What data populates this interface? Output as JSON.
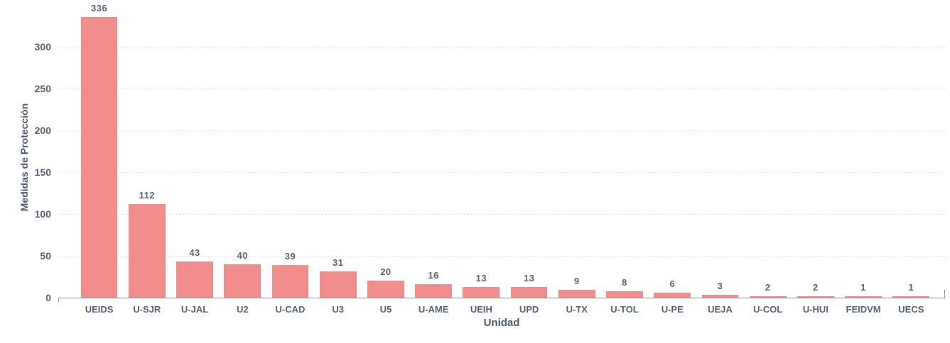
{
  "chart_data": {
    "type": "bar",
    "title": "",
    "xlabel": "Unidad",
    "ylabel": "Medidas de Protección",
    "categories": [
      "UEIDS",
      "U-SJR",
      "U-JAL",
      "U2",
      "U-CAD",
      "U3",
      "U5",
      "U-AME",
      "UEIH",
      "UPD",
      "U-TX",
      "U-TOL",
      "U-PE",
      "UEJA",
      "U-COL",
      "U-HUI",
      "FEIDVM",
      "UECS"
    ],
    "values": [
      336,
      112,
      43,
      40,
      39,
      31,
      20,
      16,
      13,
      13,
      9,
      8,
      6,
      3,
      2,
      2,
      1,
      1
    ],
    "y_ticks": [
      0,
      50,
      100,
      150,
      200,
      250,
      300
    ],
    "ylim": [
      0,
      356
    ],
    "grid": "horizontal-dashed",
    "legend": "none",
    "bar_color": "#f18d8d",
    "label_color": "#57637a",
    "axis_color": "#919191",
    "grid_color": "#e7e7e7"
  }
}
